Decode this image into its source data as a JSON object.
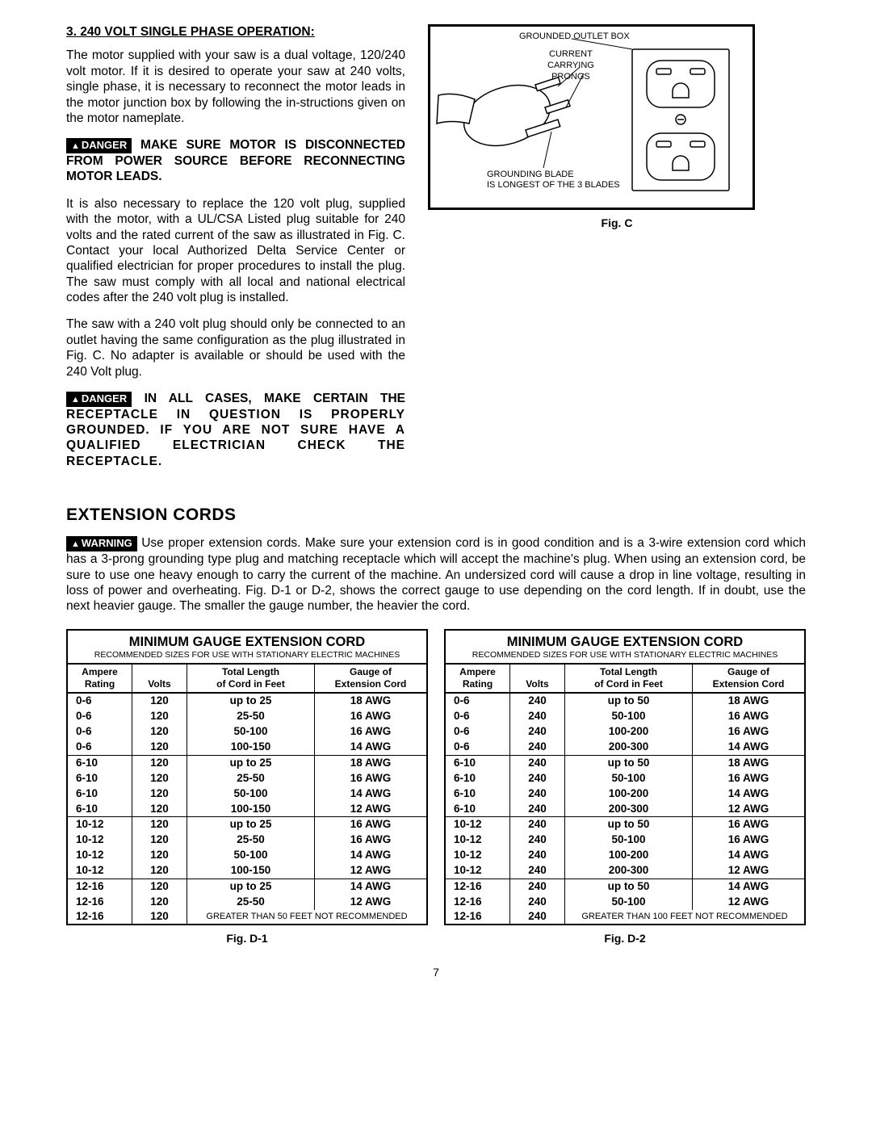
{
  "section3": {
    "number": "3.",
    "title": "240 VOLT SINGLE PHASE OPERATION:",
    "p1": "The motor supplied with your saw is a dual voltage, 120/240 volt motor. If it is desired to operate your saw at 240 volts, single phase, it is necessary to reconnect the motor leads in the motor junction box by following the in-structions given on the motor nameplate.",
    "danger1_label": "DANGER",
    "danger1_text": "MAKE SURE MOTOR IS DISCONNECTED FROM POWER SOURCE BEFORE RECONNECTING MOTOR LEADS",
    "p2": "It is also necessary to replace the 120 volt plug, supplied with the motor, with a UL/CSA Listed plug suitable for 240 volts and the rated current of the saw as illustrated in Fig. C. Contact your local Authorized Delta Service Center or qualified electrician for proper procedures to install the plug. The saw must comply with all local and national electrical codes after the 240 volt plug is installed.",
    "p3": "The saw with a 240 volt plug should only be connected to an outlet having the same configuration as the plug illustrated in Fig. C. No adapter is available or should be used with the 240 Volt plug.",
    "danger2_label": "DANGER",
    "danger2_text_a": "IN ALL CASES, MAKE CERTAIN THE",
    "danger2_text_b": "RECEPTACLE IN QUESTION IS PROPERLY GROUNDED. IF YOU ARE NOT SURE HAVE A QUALIFIED ELECTRICIAN CHECK THE RECEPTACLE."
  },
  "figc": {
    "outlet_box": "GROUNDED OUTLET BOX",
    "prongs_a": "CURRENT",
    "prongs_b": "CARRYING",
    "prongs_c": "PRONGS",
    "blade_a": "GROUNDING BLADE",
    "blade_b": "IS LONGEST OF THE 3 BLADES",
    "caption": "Fig. C"
  },
  "ext": {
    "heading": "EXTENSION CORDS",
    "warn_label": "WARNING",
    "warn_text": "Use proper extension cords. Make sure your extension cord is in good condition and is a 3-wire extension cord which has a 3-prong grounding type plug and matching receptacle which will accept the machine's plug. When using an extension cord, be sure to use one heavy enough to carry the current of the machine. An undersized cord will cause a drop in line voltage, resulting in loss of power and overheating. Fig. D-1 or D-2, shows the correct gauge to use depending on the cord length. If in doubt, use the next heavier gauge. The smaller the gauge number, the heavier the cord."
  },
  "tables": {
    "title": "MINIMUM GAUGE EXTENSION CORD",
    "sub": "RECOMMENDED SIZES FOR USE WITH STATIONARY ELECTRIC MACHINES",
    "head_amp_a": "Ampere",
    "head_amp_b": "Rating",
    "head_volt": "Volts",
    "head_len_a": "Total Length",
    "head_len_b": "of Cord in Feet",
    "head_gauge_a": "Gauge of",
    "head_gauge_b": "Extension Cord",
    "d1": {
      "caption": "Fig. D-1",
      "volts": "120",
      "rec_text": "GREATER THAN 50 FEET NOT RECOMMENDED",
      "groups": [
        {
          "amp": "0-6",
          "rows": [
            [
              "up to 25",
              "18 AWG"
            ],
            [
              "25-50",
              "16 AWG"
            ],
            [
              "50-100",
              "16 AWG"
            ],
            [
              "100-150",
              "14 AWG"
            ]
          ]
        },
        {
          "amp": "6-10",
          "rows": [
            [
              "up to 25",
              "18 AWG"
            ],
            [
              "25-50",
              "16 AWG"
            ],
            [
              "50-100",
              "14 AWG"
            ],
            [
              "100-150",
              "12 AWG"
            ]
          ]
        },
        {
          "amp": "10-12",
          "rows": [
            [
              "up to 25",
              "16 AWG"
            ],
            [
              "25-50",
              "16 AWG"
            ],
            [
              "50-100",
              "14 AWG"
            ],
            [
              "100-150",
              "12 AWG"
            ]
          ]
        },
        {
          "amp": "12-16",
          "rows": [
            [
              "up to 25",
              "14 AWG"
            ],
            [
              "25-50",
              "12 AWG"
            ]
          ],
          "rec": true
        }
      ]
    },
    "d2": {
      "caption": "Fig. D-2",
      "volts": "240",
      "rec_text": "GREATER THAN 100 FEET NOT RECOMMENDED",
      "groups": [
        {
          "amp": "0-6",
          "rows": [
            [
              "up to 50",
              "18 AWG"
            ],
            [
              "50-100",
              "16 AWG"
            ],
            [
              "100-200",
              "16 AWG"
            ],
            [
              "200-300",
              "14 AWG"
            ]
          ]
        },
        {
          "amp": "6-10",
          "rows": [
            [
              "up to 50",
              "18 AWG"
            ],
            [
              "50-100",
              "16 AWG"
            ],
            [
              "100-200",
              "14 AWG"
            ],
            [
              "200-300",
              "12 AWG"
            ]
          ]
        },
        {
          "amp": "10-12",
          "rows": [
            [
              "up to 50",
              "16 AWG"
            ],
            [
              "50-100",
              "16 AWG"
            ],
            [
              "100-200",
              "14 AWG"
            ],
            [
              "200-300",
              "12 AWG"
            ]
          ]
        },
        {
          "amp": "12-16",
          "rows": [
            [
              "up to 50",
              "14 AWG"
            ],
            [
              "50-100",
              "12 AWG"
            ]
          ],
          "rec": true
        }
      ]
    }
  },
  "page_num": "7"
}
